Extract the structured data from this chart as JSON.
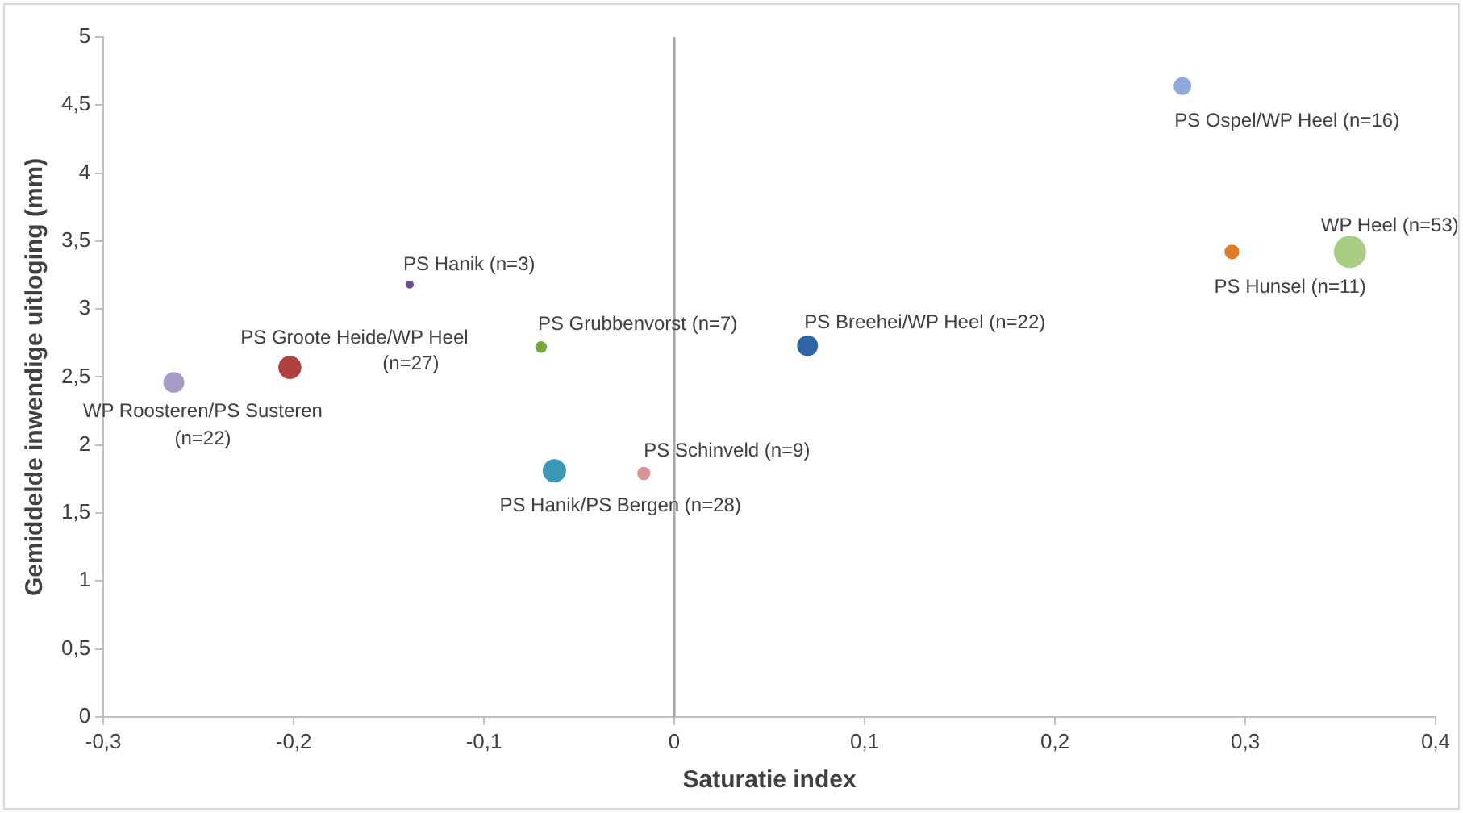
{
  "chart_data": {
    "type": "bubble",
    "xlabel": "Saturatie index",
    "ylabel": "Gemiddelde inwendige uitloging (mm)",
    "xlim": [
      -0.3,
      0.4
    ],
    "ylim": [
      0,
      5
    ],
    "xticks": [
      {
        "value": -0.3,
        "label": "-0,3"
      },
      {
        "value": -0.2,
        "label": "-0,2"
      },
      {
        "value": -0.1,
        "label": "-0,1"
      },
      0,
      {
        "value": 0.1,
        "label": "0,1"
      },
      {
        "value": 0.2,
        "label": "0,2"
      },
      {
        "value": 0.3,
        "label": "0,3"
      },
      {
        "value": 0.4,
        "label": "0,4"
      }
    ],
    "yticks": [
      0,
      {
        "value": 0.5,
        "label": "0,5"
      },
      1,
      {
        "value": 1.5,
        "label": "1,5"
      },
      2,
      {
        "value": 2.5,
        "label": "2,5"
      },
      3,
      {
        "value": 3.5,
        "label": "3,5"
      },
      4,
      {
        "value": 4.5,
        "label": "4,5"
      },
      5
    ],
    "grid": false,
    "legend": false,
    "ref_lines": [
      {
        "axis": "x",
        "value": 0,
        "color": "#a6a6a6"
      }
    ],
    "series": [
      {
        "x": [
          0.267,
          0.293,
          0.355,
          -0.139,
          -0.202,
          -0.263,
          -0.07,
          -0.063,
          -0.016,
          0.07
        ],
        "values": [
          4.64,
          3.42,
          3.42,
          3.18,
          2.57,
          2.46,
          2.72,
          1.81,
          1.79,
          2.73
        ],
        "sizes": [
          0.3,
          0.21,
          1,
          0.06,
          0.51,
          0.42,
          0.13,
          0.53,
          0.17,
          0.42
        ],
        "colors": [
          "#8eaadb",
          "#e07b2a",
          "#a9cd85",
          "#6f4a9a",
          "#b0413e",
          "#a99bc9",
          "#7aa33c",
          "#3a98b5",
          "#d99594",
          "#2f64a6"
        ]
      }
    ],
    "annotations": [
      {
        "text": "PS Ospel/WP Heel (n=16)",
        "x": 0.267,
        "y": 4.64
      },
      {
        "text": "PS Hunsel (n=11)",
        "x": 0.293,
        "y": 3.42
      },
      {
        "text": "WP Heel (n=53)",
        "x": 0.355,
        "y": 3.42
      },
      {
        "text": "PS Hanik (n=3)",
        "x": -0.139,
        "y": 3.18
      },
      {
        "text": "PS Groote Heide/WP Heel (n=27)",
        "x": -0.202,
        "y": 2.57
      },
      {
        "text": "WP Roosteren/PS Susteren (n=22)",
        "x": -0.263,
        "y": 2.46
      },
      {
        "text": "PS Grubbenvorst (n=7)",
        "x": -0.07,
        "y": 2.72
      },
      {
        "text": "PS Hanik/PS Bergen (n=28)",
        "x": -0.063,
        "y": 1.81
      },
      {
        "text": "PS Schinveld (n=9)",
        "x": -0.016,
        "y": 1.79
      },
      {
        "text": "PS Breehei/WP Heel (n=22)",
        "x": 0.07,
        "y": 2.73
      }
    ]
  }
}
